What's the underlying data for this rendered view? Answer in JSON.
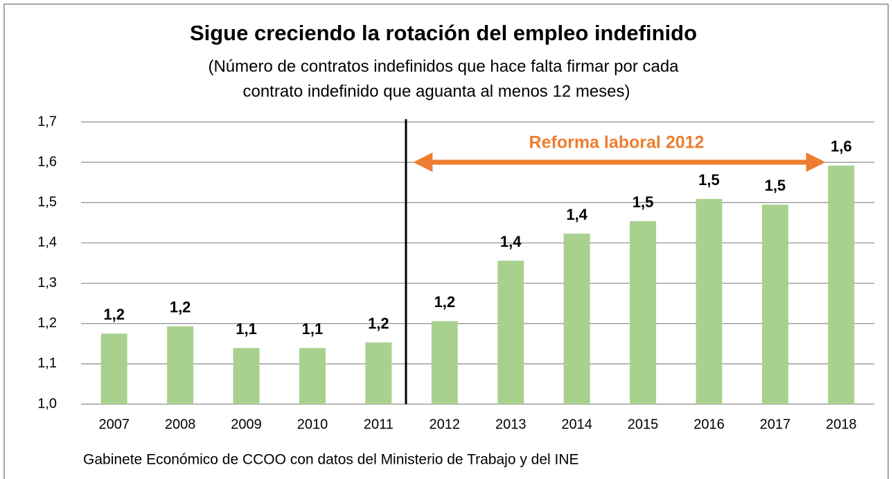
{
  "chart_data": {
    "type": "bar",
    "title": "Sigue creciendo la rotación del empleo indefinido",
    "subtitle": [
      "(Número de contratos indefinidos que hace falta firmar por cada",
      "contrato indefinido que aguanta al menos 12 meses)"
    ],
    "annotation": "Reforma  laboral 2012",
    "source": "Gabinete Económico de CCOO con datos del Ministerio de Trabajo y del INE",
    "categories": [
      "2007",
      "2008",
      "2009",
      "2010",
      "2011",
      "2012",
      "2013",
      "2014",
      "2015",
      "2016",
      "2017",
      "2018"
    ],
    "values": [
      1.175,
      1.193,
      1.139,
      1.139,
      1.153,
      1.206,
      1.356,
      1.423,
      1.454,
      1.509,
      1.495,
      1.592
    ],
    "value_labels": [
      "1,2",
      "1,2",
      "1,1",
      "1,1",
      "1,2",
      "1,2",
      "1,4",
      "1,4",
      "1,5",
      "1,5",
      "1,5",
      "1,6"
    ],
    "color": "#a9d18e",
    "ylim": [
      1.0,
      1.7
    ],
    "yticks": [
      {
        "value": 1.0,
        "label": "1,0"
      },
      {
        "value": 1.1,
        "label": "1,1"
      },
      {
        "value": 1.2,
        "label": "1,2"
      },
      {
        "value": 1.3,
        "label": "1,3"
      },
      {
        "value": 1.4,
        "label": "1,4"
      },
      {
        "value": 1.5,
        "label": "1,5"
      },
      {
        "value": 1.6,
        "label": "1,6"
      },
      {
        "value": 1.7,
        "label": "1,7"
      }
    ],
    "grid": true
  }
}
